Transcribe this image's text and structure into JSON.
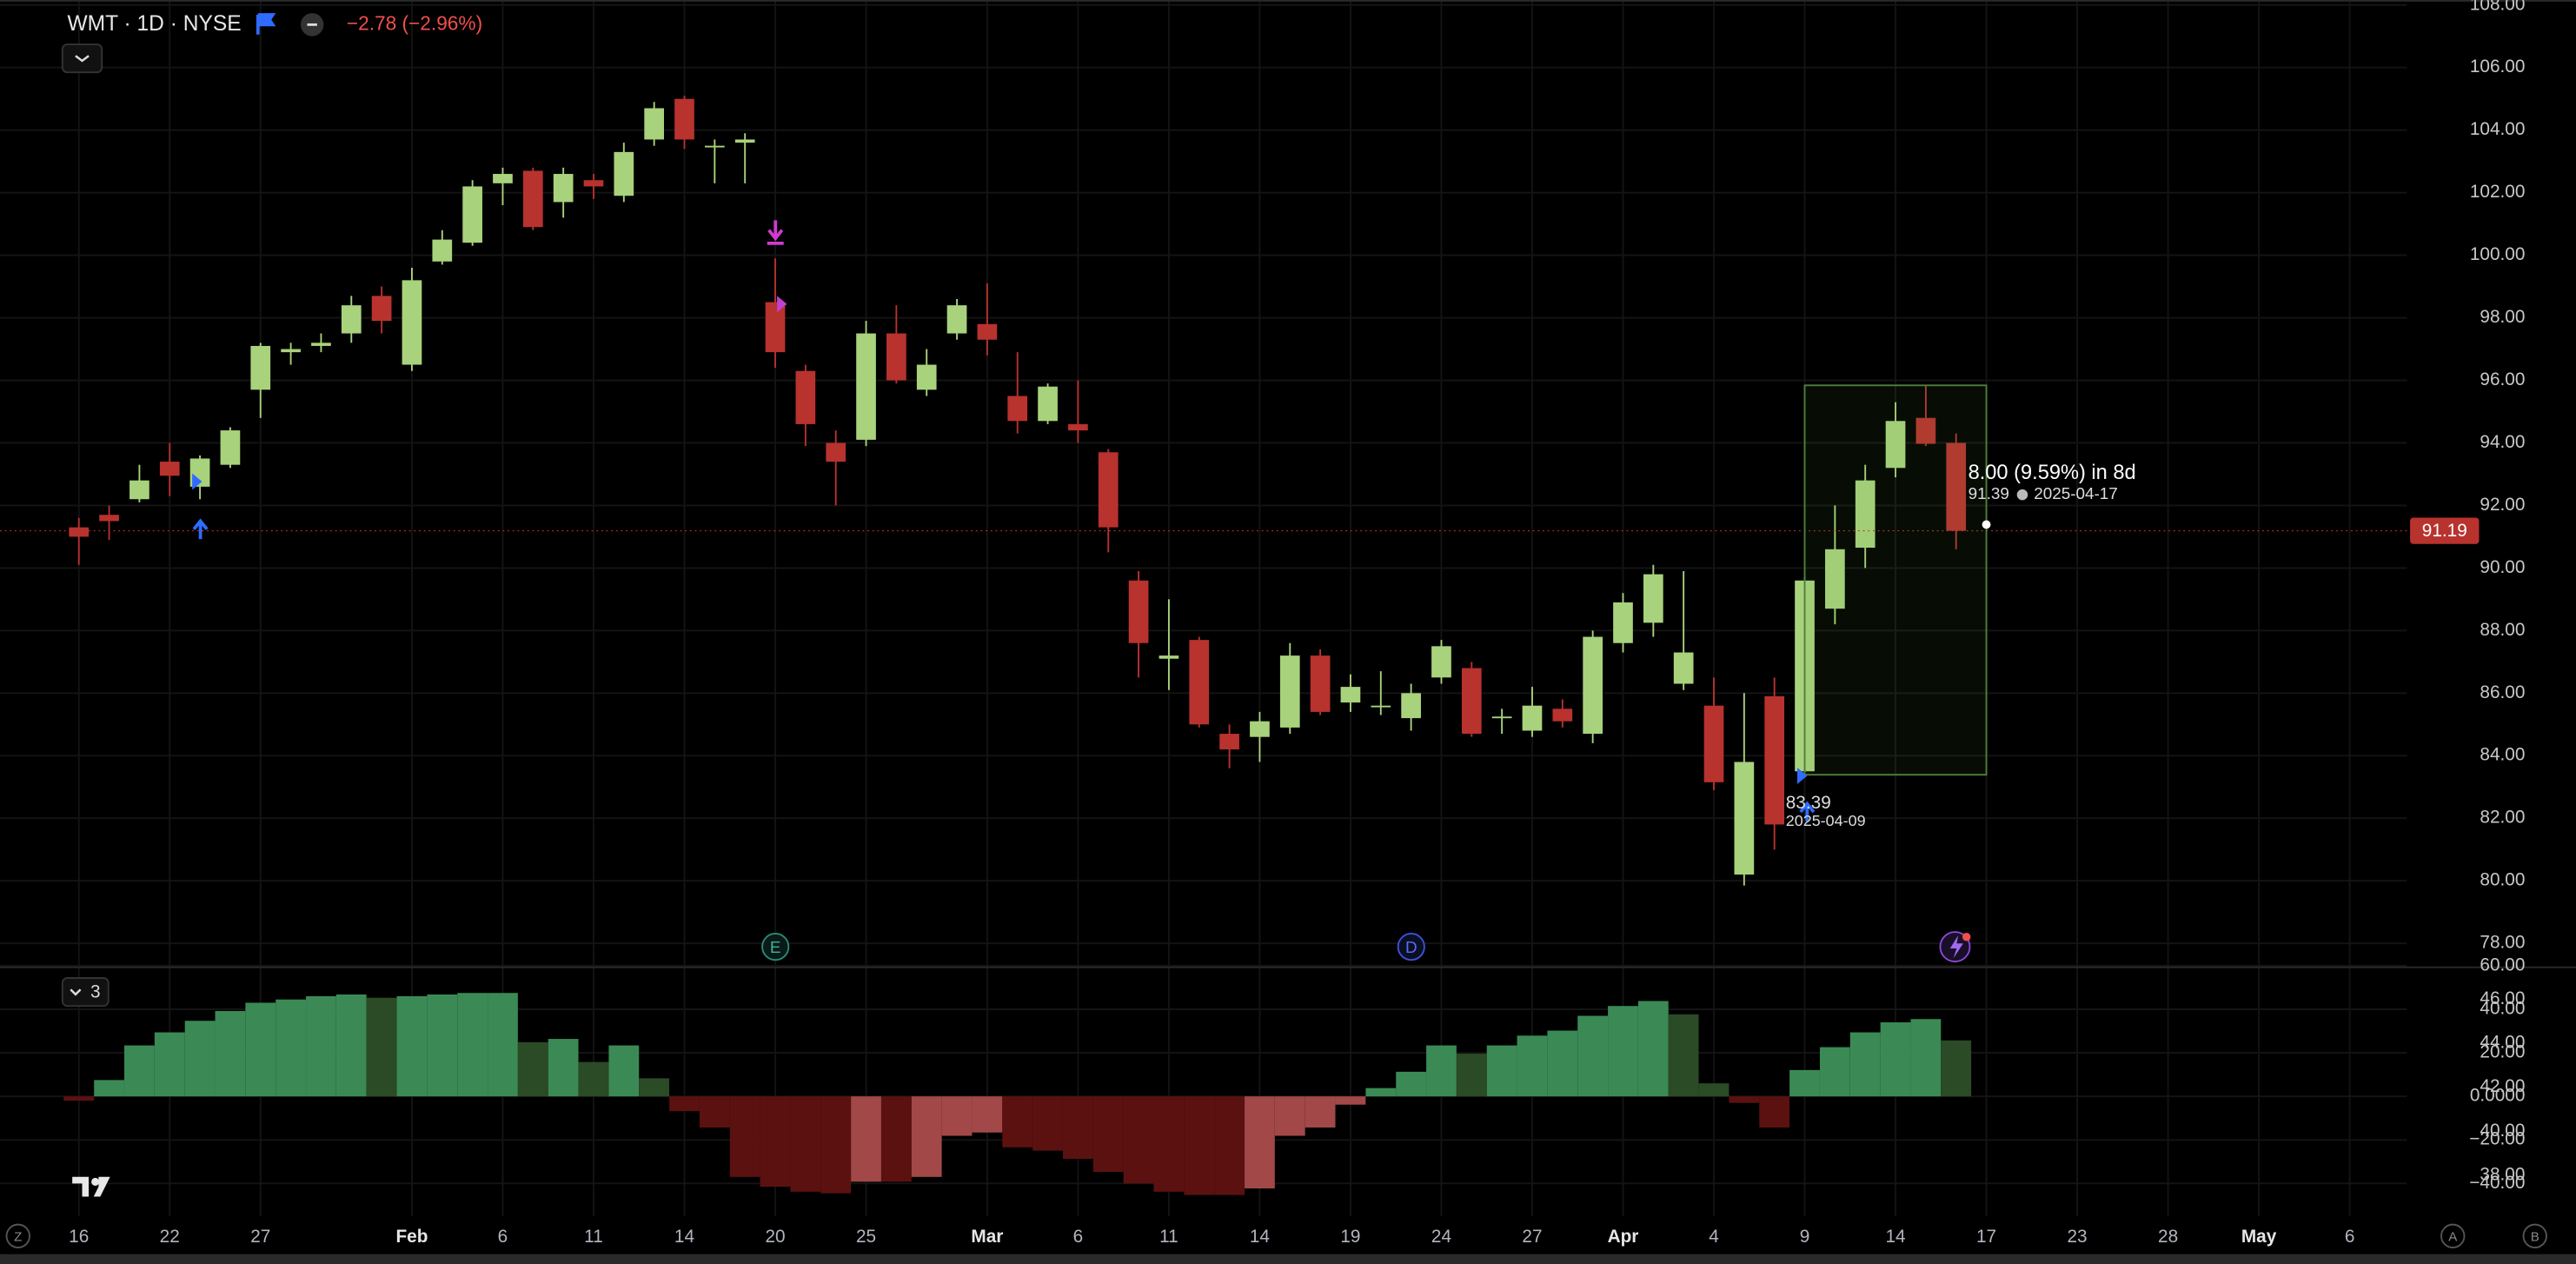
{
  "header": {
    "symbol": "WMT · 1D · NYSE",
    "change": "−2.78 (−2.96%)"
  },
  "controls": [
    "Z",
    "A",
    "B"
  ],
  "chart_data": [
    {
      "type": "candlestick",
      "categories": [
        "16",
        null,
        null,
        "22",
        null,
        null,
        "27",
        null,
        null,
        null,
        null,
        "Feb",
        null,
        null,
        "6",
        null,
        null,
        "11",
        null,
        null,
        "14",
        null,
        null,
        "20",
        null,
        null,
        "25",
        null,
        null,
        null,
        "Mar",
        null,
        null,
        "6",
        null,
        null,
        "11",
        null,
        null,
        "14",
        null,
        null,
        "19",
        null,
        null,
        "24",
        null,
        null,
        "27",
        null,
        null,
        "Apr",
        null,
        null,
        "4",
        null,
        null,
        "9",
        null,
        null,
        "14",
        null,
        null,
        "17",
        null,
        null,
        "23",
        null,
        null,
        "28",
        null,
        null,
        "May",
        null,
        null,
        "6"
      ],
      "open": [
        91.3,
        91.7,
        92.2,
        93.4,
        92.6,
        93.3,
        95.7,
        96.9,
        97.1,
        97.5,
        98.7,
        96.5,
        99.8,
        100.4,
        102.3,
        102.7,
        101.7,
        102.4,
        101.9,
        103.7,
        105.0,
        103.45,
        103.6,
        98.5,
        96.3,
        94.0,
        94.1,
        97.5,
        95.7,
        97.5,
        97.8,
        95.5,
        94.7,
        94.6,
        93.7,
        89.6,
        87.1,
        87.7,
        84.7,
        84.6,
        84.9,
        87.2,
        85.7,
        85.55,
        85.2,
        86.5,
        86.8,
        85.2,
        84.8,
        85.5,
        84.7,
        87.6,
        88.25,
        86.3,
        85.6,
        80.2,
        85.9,
        83.5,
        88.7,
        90.65,
        93.2,
        94.8,
        94.0,
        null,
        null,
        null,
        null,
        null,
        null,
        null,
        null,
        null,
        null,
        null,
        null,
        null
      ],
      "high": [
        91.6,
        92.0,
        93.3,
        94.0,
        93.6,
        94.5,
        97.2,
        97.2,
        97.5,
        98.7,
        99.0,
        99.6,
        100.8,
        102.4,
        102.8,
        102.8,
        102.8,
        102.6,
        103.6,
        104.9,
        105.1,
        103.7,
        103.9,
        99.9,
        96.5,
        94.4,
        97.9,
        98.4,
        97.0,
        98.6,
        99.1,
        96.9,
        95.9,
        96.0,
        93.8,
        89.9,
        89.0,
        87.8,
        85.0,
        85.4,
        87.6,
        87.4,
        86.6,
        86.7,
        86.3,
        87.7,
        87.0,
        85.5,
        86.2,
        85.8,
        88.0,
        89.2,
        90.1,
        89.9,
        86.5,
        86.0,
        86.5,
        89.7,
        92.0,
        93.3,
        95.3,
        95.84,
        94.3,
        null,
        null,
        null,
        null,
        null,
        null,
        null,
        null,
        null,
        null,
        null,
        null,
        null
      ],
      "low": [
        90.1,
        90.9,
        92.1,
        92.3,
        92.2,
        93.2,
        94.8,
        96.5,
        96.9,
        97.2,
        97.5,
        96.3,
        99.7,
        100.3,
        101.6,
        100.8,
        101.2,
        101.8,
        101.7,
        103.5,
        103.4,
        102.3,
        102.3,
        96.4,
        93.9,
        92.0,
        93.9,
        95.9,
        95.5,
        97.3,
        96.8,
        94.3,
        94.6,
        94.0,
        90.5,
        86.5,
        86.1,
        84.9,
        83.6,
        83.8,
        84.7,
        85.3,
        85.4,
        85.3,
        84.8,
        86.3,
        84.6,
        84.7,
        84.6,
        84.9,
        84.4,
        87.3,
        87.8,
        86.1,
        82.9,
        79.85,
        81.0,
        83.39,
        88.2,
        90.0,
        92.9,
        93.9,
        90.6,
        null,
        null,
        null,
        null,
        null,
        null,
        null,
        null,
        null,
        null,
        null,
        null,
        null
      ],
      "close": [
        91.0,
        91.5,
        92.8,
        92.95,
        93.5,
        94.4,
        97.1,
        97.0,
        97.2,
        98.4,
        97.9,
        99.2,
        100.5,
        102.2,
        102.6,
        100.9,
        102.6,
        102.2,
        103.3,
        104.7,
        103.7,
        103.5,
        103.7,
        96.9,
        94.6,
        93.4,
        97.5,
        96.0,
        96.5,
        98.4,
        97.3,
        94.7,
        95.8,
        94.4,
        91.3,
        87.6,
        87.2,
        85.0,
        84.2,
        85.1,
        87.2,
        85.4,
        86.2,
        85.6,
        86.0,
        87.5,
        84.7,
        85.25,
        85.6,
        85.1,
        87.8,
        88.9,
        89.8,
        87.3,
        83.15,
        83.8,
        81.8,
        89.6,
        90.6,
        92.8,
        94.7,
        93.97,
        91.19,
        null,
        null,
        null,
        null,
        null,
        null,
        null,
        null,
        null,
        null,
        null,
        null,
        null
      ],
      "colors": {
        "up": "#a9d27c",
        "down": "#b8322e"
      },
      "ylim": [
        77.26,
        108.16
      ],
      "yticks": [
        {
          "value": 78,
          "label": "78.00"
        },
        {
          "value": 80,
          "label": "80.00"
        },
        {
          "value": 82,
          "label": "82.00"
        },
        {
          "value": 84,
          "label": "84.00"
        },
        {
          "value": 86,
          "label": "86.00"
        },
        {
          "value": 88,
          "label": "88.00"
        },
        {
          "value": 90,
          "label": "90.00"
        },
        {
          "value": 92,
          "label": "92.00"
        },
        {
          "value": 94,
          "label": "94.00"
        },
        {
          "value": 96,
          "label": "96.00"
        },
        {
          "value": 98,
          "label": "98.00"
        },
        {
          "value": 100,
          "label": "100.00"
        },
        {
          "value": 102,
          "label": "102.00"
        },
        {
          "value": 104,
          "label": "104.00"
        },
        {
          "value": 106,
          "label": "106.00"
        },
        {
          "value": 108,
          "label": "108.00"
        }
      ],
      "grid": true,
      "last_price": 91.19,
      "events": [
        "E",
        "D"
      ],
      "measure": {
        "label": "8.00 (9.59%) in 8d",
        "start": 83.39,
        "start_date": "2025-04-09",
        "end": 91.39,
        "end_date": "2025-04-17"
      }
    },
    {
      "type": "bar",
      "legend": "3",
      "values": [
        -2,
        7.5,
        23.4,
        29.4,
        34.7,
        39.2,
        43,
        44.5,
        46,
        46.8,
        45.3,
        46,
        46.8,
        47.5,
        47.5,
        24.9,
        26.4,
        15.8,
        23.4,
        8.3,
        -6.8,
        -14.3,
        -37,
        -41.5,
        -43.8,
        -44.5,
        -39.2,
        -39.2,
        -37,
        -18.1,
        -16.6,
        -23.4,
        -24.9,
        -28.7,
        -34.7,
        -40,
        -43.8,
        -45.3,
        -45.3,
        -42.3,
        -18.1,
        -14.3,
        -3.8,
        3.8,
        11.3,
        23.4,
        19.6,
        23.4,
        27.9,
        30.2,
        37,
        41.5,
        43.8,
        37.7,
        6,
        -3,
        -14.3,
        12.1,
        22.6,
        29.4,
        34,
        35.5,
        25.7,
        null,
        null,
        null,
        null,
        null,
        null,
        null,
        null,
        null,
        null,
        null,
        null,
        null
      ],
      "colors": {
        "grow_above": "#3b8a56",
        "fall_above": "#2b4a26",
        "grow_below": "#a24848",
        "fall_below": "#5c1111"
      },
      "ylim": [
        -55.1,
        58.9
      ],
      "yticks": [
        {
          "value": 60,
          "label": "60.00"
        },
        {
          "value": 40,
          "label": "40.00"
        },
        {
          "value": 20,
          "label": "20.00"
        },
        {
          "value": 0,
          "label": "0.0000"
        },
        {
          "value": -20,
          "label": "−20.00"
        },
        {
          "value": -40,
          "label": "−40.00"
        }
      ],
      "y2lim": [
        36.13,
        47.42
      ],
      "y2ticks": [
        {
          "value": 46,
          "label": "46.00"
        },
        {
          "value": 44,
          "label": "44.00"
        },
        {
          "value": 42,
          "label": "42.00"
        },
        {
          "value": 40,
          "label": "40.00"
        },
        {
          "value": 38,
          "label": "38.00"
        }
      ],
      "grid": true
    }
  ]
}
